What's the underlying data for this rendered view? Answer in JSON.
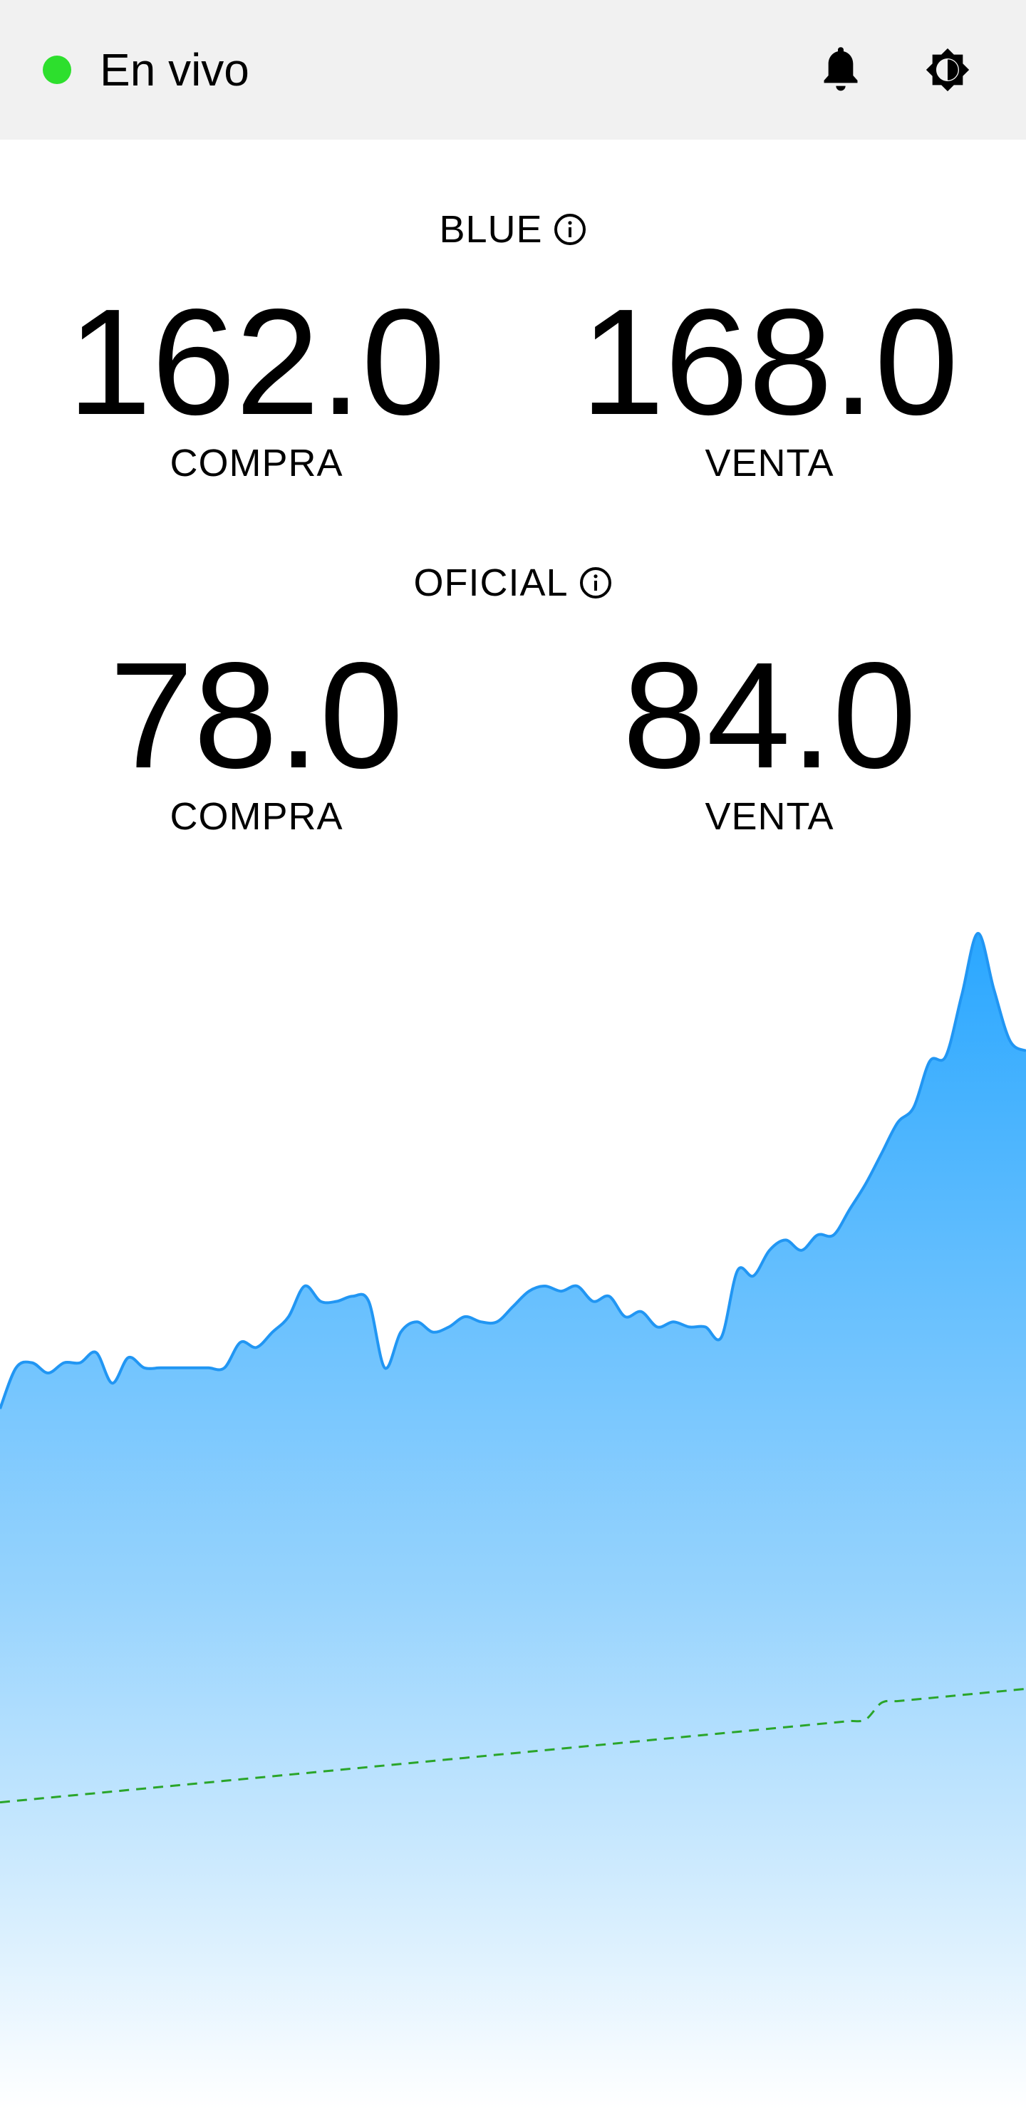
{
  "header": {
    "status_label": "En vivo",
    "status_color": "#2ddf2d",
    "icons": [
      "bell-icon",
      "brightness-icon"
    ]
  },
  "blue": {
    "title": "BLUE",
    "buy_value": "162.0",
    "buy_label": "COMPRA",
    "sell_value": "168.0",
    "sell_label": "VENTA"
  },
  "oficial": {
    "title": "OFICIAL",
    "buy_value": "78.0",
    "buy_label": "COMPRA",
    "sell_value": "84.0",
    "sell_label": "VENTA"
  },
  "chart_data": {
    "type": "area",
    "axes_visible": false,
    "grid": false,
    "ylim": [
      0,
      230
    ],
    "series": [
      {
        "style": "area",
        "color": "#2196f3",
        "values": [
          137,
          145,
          146,
          144,
          146,
          146,
          148,
          142,
          147,
          145,
          145,
          145,
          145,
          145,
          145,
          150,
          149,
          152,
          155,
          161,
          158,
          158,
          159,
          158,
          145,
          152,
          154,
          152,
          153,
          155,
          154,
          154,
          157,
          160,
          161,
          160,
          161,
          158,
          159,
          155,
          156,
          153,
          154,
          153,
          153,
          151,
          164,
          163,
          168,
          170,
          168,
          171,
          171,
          176,
          181,
          187,
          193,
          196,
          205,
          206,
          218,
          230,
          219,
          209,
          207
        ]
      },
      {
        "style": "dashed-line",
        "color": "#2aa52a",
        "values": [
          60,
          60.3,
          60.6,
          60.9,
          61.2,
          61.5,
          61.8,
          62.1,
          62.4,
          62.7,
          63,
          63.3,
          63.6,
          63.9,
          64.2,
          64.5,
          64.8,
          65.1,
          65.4,
          65.7,
          66,
          66.3,
          66.6,
          66.9,
          67.2,
          67.5,
          67.8,
          68.1,
          68.4,
          68.7,
          69,
          69.3,
          69.6,
          69.9,
          70.2,
          70.5,
          70.8,
          71.1,
          71.4,
          71.7,
          72,
          72.3,
          72.6,
          72.9,
          73.2,
          73.5,
          73.8,
          74.1,
          74.4,
          74.7,
          75,
          75.3,
          75.6,
          75.9,
          76.2,
          79.5,
          79.8,
          80.1,
          80.4,
          80.7,
          81,
          81.3,
          81.6,
          81.9,
          82.2
        ]
      }
    ]
  }
}
